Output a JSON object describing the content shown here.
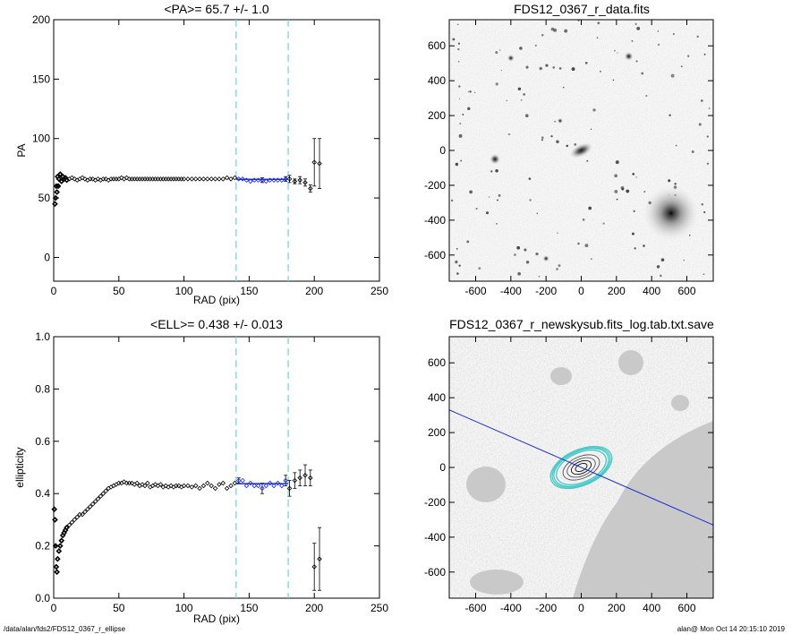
{
  "footer": {
    "path": "/data/alan/fds2/FDS12_0367_r_ellipse",
    "stamp": "alan@  Mon Oct 14 20:15:10 2019"
  },
  "colors": {
    "data": "#000000",
    "fit": "#1c2bd6",
    "bounds": "#67d7d7",
    "ellipse_outer": "#ffffff",
    "ellipse_inner": "#4fc9c6"
  },
  "chart_data": [
    {
      "type": "scatter",
      "title": "<PA>=  65.7 +/-   1.0",
      "xlabel": "RAD (pix)",
      "ylabel": "PA",
      "xlim": [
        0,
        250
      ],
      "ylim": [
        -20,
        200
      ],
      "xticks": [
        "0",
        "50",
        "100",
        "150",
        "200",
        "250"
      ],
      "xtick_values": [
        0,
        50,
        100,
        150,
        200,
        250
      ],
      "yticks": [
        "0",
        "50",
        "100",
        "150",
        "200"
      ],
      "ytick_values": [
        0,
        50,
        100,
        150,
        200
      ],
      "bounds": [
        140,
        180
      ],
      "fit_value": 65.7,
      "points": [
        [
          1,
          45
        ],
        [
          1.5,
          50
        ],
        [
          2,
          60
        ],
        [
          2.5,
          55
        ],
        [
          3,
          68
        ],
        [
          3.5,
          60
        ],
        [
          4,
          66
        ],
        [
          5,
          70
        ],
        [
          6,
          64
        ],
        [
          7,
          68
        ],
        [
          8,
          66
        ],
        [
          9,
          67
        ],
        [
          10,
          65
        ],
        [
          12,
          66
        ],
        [
          14,
          67
        ],
        [
          16,
          66
        ],
        [
          18,
          65
        ],
        [
          20,
          66
        ],
        [
          22,
          67
        ],
        [
          24,
          66
        ],
        [
          26,
          65
        ],
        [
          28,
          66
        ],
        [
          30,
          66
        ],
        [
          32,
          65
        ],
        [
          34,
          66
        ],
        [
          36,
          65
        ],
        [
          38,
          66
        ],
        [
          40,
          66
        ],
        [
          42,
          65
        ],
        [
          44,
          66
        ],
        [
          46,
          66
        ],
        [
          48,
          66
        ],
        [
          50,
          66
        ],
        [
          52,
          67
        ],
        [
          54,
          66
        ],
        [
          56,
          67
        ],
        [
          58,
          66
        ],
        [
          60,
          66
        ],
        [
          62,
          66
        ],
        [
          64,
          66
        ],
        [
          66,
          66
        ],
        [
          68,
          66
        ],
        [
          70,
          66
        ],
        [
          72,
          66
        ],
        [
          74,
          66
        ],
        [
          76,
          66
        ],
        [
          78,
          66
        ],
        [
          80,
          66
        ],
        [
          82,
          66
        ],
        [
          84,
          66
        ],
        [
          86,
          66
        ],
        [
          88,
          66
        ],
        [
          90,
          66
        ],
        [
          92,
          66
        ],
        [
          94,
          66
        ],
        [
          96,
          66
        ],
        [
          98,
          66
        ],
        [
          100,
          66
        ],
        [
          103,
          66
        ],
        [
          106,
          66
        ],
        [
          109,
          66
        ],
        [
          112,
          66
        ],
        [
          115,
          66
        ],
        [
          118,
          66
        ],
        [
          121,
          66
        ],
        [
          124,
          66
        ],
        [
          127,
          66
        ],
        [
          130,
          66
        ],
        [
          133,
          67
        ],
        [
          136,
          66
        ],
        [
          139,
          67
        ],
        [
          142,
          66
        ],
        [
          145,
          66
        ],
        [
          148,
          65
        ],
        [
          151,
          64
        ],
        [
          154,
          65
        ],
        [
          157,
          65
        ],
        [
          160,
          65
        ],
        [
          163,
          64
        ],
        [
          166,
          65
        ],
        [
          169,
          65
        ],
        [
          172,
          65
        ],
        [
          175,
          65
        ],
        [
          178,
          66
        ],
        [
          181,
          66
        ],
        [
          185,
          64
        ],
        [
          189,
          65
        ],
        [
          193,
          63
        ],
        [
          197,
          58
        ],
        [
          200,
          80
        ],
        [
          204,
          79
        ]
      ],
      "errors": [
        [
          140,
          2
        ],
        [
          150,
          2
        ],
        [
          160,
          2
        ],
        [
          170,
          2
        ],
        [
          178,
          2
        ],
        [
          181,
          3
        ],
        [
          185,
          2
        ],
        [
          189,
          3
        ],
        [
          193,
          3
        ],
        [
          197,
          3
        ],
        [
          200,
          20
        ],
        [
          204,
          21
        ]
      ]
    },
    {
      "type": "scatter",
      "title": "<ELL>= 0.438 +/-  0.013",
      "xlabel": "RAD (pix)",
      "ylabel": "ellipticity",
      "xlim": [
        0,
        250
      ],
      "ylim": [
        0,
        1
      ],
      "xticks": [
        "0",
        "50",
        "100",
        "150",
        "200",
        "250"
      ],
      "xtick_values": [
        0,
        50,
        100,
        150,
        200,
        250
      ],
      "yticks": [
        "0.0",
        "0.2",
        "0.4",
        "0.6",
        "0.8",
        "1.0"
      ],
      "ytick_values": [
        0,
        0.2,
        0.4,
        0.6,
        0.8,
        1.0
      ],
      "bounds": [
        140,
        180
      ],
      "fit_value": 0.438,
      "points": [
        [
          0.5,
          0.34
        ],
        [
          1,
          0.3
        ],
        [
          1.5,
          0.2
        ],
        [
          2,
          0.12
        ],
        [
          2.5,
          0.1
        ],
        [
          3,
          0.15
        ],
        [
          4,
          0.18
        ],
        [
          5,
          0.2
        ],
        [
          6,
          0.22
        ],
        [
          7,
          0.24
        ],
        [
          8,
          0.25
        ],
        [
          9,
          0.26
        ],
        [
          10,
          0.27
        ],
        [
          12,
          0.28
        ],
        [
          14,
          0.29
        ],
        [
          16,
          0.3
        ],
        [
          18,
          0.31
        ],
        [
          20,
          0.32
        ],
        [
          22,
          0.32
        ],
        [
          24,
          0.33
        ],
        [
          26,
          0.34
        ],
        [
          28,
          0.35
        ],
        [
          30,
          0.36
        ],
        [
          32,
          0.37
        ],
        [
          34,
          0.38
        ],
        [
          36,
          0.39
        ],
        [
          38,
          0.4
        ],
        [
          40,
          0.41
        ],
        [
          42,
          0.42
        ],
        [
          44,
          0.425
        ],
        [
          46,
          0.43
        ],
        [
          48,
          0.435
        ],
        [
          50,
          0.44
        ],
        [
          52,
          0.44
        ],
        [
          54,
          0.445
        ],
        [
          56,
          0.44
        ],
        [
          58,
          0.44
        ],
        [
          60,
          0.44
        ],
        [
          62,
          0.435
        ],
        [
          64,
          0.44
        ],
        [
          66,
          0.43
        ],
        [
          68,
          0.435
        ],
        [
          70,
          0.43
        ],
        [
          72,
          0.44
        ],
        [
          74,
          0.425
        ],
        [
          76,
          0.43
        ],
        [
          78,
          0.435
        ],
        [
          80,
          0.43
        ],
        [
          82,
          0.435
        ],
        [
          84,
          0.425
        ],
        [
          86,
          0.43
        ],
        [
          88,
          0.425
        ],
        [
          90,
          0.43
        ],
        [
          92,
          0.425
        ],
        [
          94,
          0.43
        ],
        [
          96,
          0.43
        ],
        [
          98,
          0.425
        ],
        [
          100,
          0.43
        ],
        [
          103,
          0.43
        ],
        [
          106,
          0.425
        ],
        [
          109,
          0.43
        ],
        [
          112,
          0.42
        ],
        [
          115,
          0.43
        ],
        [
          118,
          0.44
        ],
        [
          121,
          0.43
        ],
        [
          124,
          0.42
        ],
        [
          127,
          0.435
        ],
        [
          130,
          0.44
        ],
        [
          133,
          0.42
        ],
        [
          136,
          0.43
        ],
        [
          139,
          0.44
        ],
        [
          142,
          0.45
        ],
        [
          145,
          0.45
        ],
        [
          148,
          0.43
        ],
        [
          151,
          0.44
        ],
        [
          154,
          0.43
        ],
        [
          157,
          0.43
        ],
        [
          160,
          0.42
        ],
        [
          163,
          0.43
        ],
        [
          166,
          0.44
        ],
        [
          169,
          0.43
        ],
        [
          172,
          0.44
        ],
        [
          175,
          0.43
        ],
        [
          178,
          0.45
        ],
        [
          181,
          0.42
        ],
        [
          185,
          0.45
        ],
        [
          189,
          0.46
        ],
        [
          193,
          0.47
        ],
        [
          197,
          0.46
        ],
        [
          200,
          0.12
        ],
        [
          204,
          0.15
        ]
      ],
      "errors": [
        [
          142,
          0.01
        ],
        [
          150,
          0.015
        ],
        [
          160,
          0.02
        ],
        [
          170,
          0.02
        ],
        [
          178,
          0.02
        ],
        [
          181,
          0.03
        ],
        [
          185,
          0.03
        ],
        [
          189,
          0.03
        ],
        [
          193,
          0.04
        ],
        [
          197,
          0.03
        ],
        [
          200,
          0.09
        ],
        [
          204,
          0.12
        ]
      ]
    },
    {
      "type": "image",
      "title": "FDS12_0367_r_data.fits",
      "xlim": [
        -750,
        750
      ],
      "ylim": [
        -750,
        750
      ],
      "xticks": [
        "-600",
        "-400",
        "-200",
        "0",
        "200",
        "400",
        "600"
      ],
      "xtick_values": [
        -600,
        -400,
        -200,
        0,
        200,
        400,
        600
      ],
      "yticks": [
        "-600",
        "-400",
        "-200",
        "0",
        "200",
        "400",
        "600"
      ],
      "ytick_values": [
        -600,
        -400,
        -200,
        0,
        200,
        400,
        600
      ],
      "sources": [
        [
          0,
          0,
          70,
          36,
          25
        ],
        [
          510,
          -360,
          160,
          160,
          0
        ],
        [
          -490,
          -50,
          30,
          30,
          0
        ],
        [
          270,
          540,
          25,
          25,
          0
        ],
        [
          -400,
          530,
          20,
          20,
          0
        ],
        [
          -200,
          -620,
          18,
          18,
          0
        ],
        [
          -120,
          170,
          16,
          16,
          0
        ],
        [
          -230,
          470,
          14,
          14,
          0
        ],
        [
          -510,
          -120,
          10,
          10,
          0
        ],
        [
          -710,
          -640,
          14,
          14,
          0
        ]
      ]
    },
    {
      "type": "image",
      "title": "FDS12_0367_r_newskysub.fits_log.tab.txt.save",
      "xlim": [
        -750,
        750
      ],
      "ylim": [
        -750,
        750
      ],
      "xticks": [
        "-600",
        "-400",
        "-200",
        "0",
        "200",
        "400",
        "600"
      ],
      "xtick_values": [
        -600,
        -400,
        -200,
        0,
        200,
        400,
        600
      ],
      "yticks": [
        "-600",
        "-400",
        "-200",
        "0",
        "200",
        "400",
        "600"
      ],
      "ytick_values": [
        -600,
        -400,
        -200,
        0,
        200,
        400,
        600
      ],
      "pa_line": [
        [
          -750,
          330
        ],
        [
          750,
          -330
        ]
      ],
      "ellipse_pa": 24,
      "ellipses_outer": [
        [
          180,
          100
        ],
        [
          160,
          90
        ],
        [
          140,
          78
        ]
      ],
      "ellipses_inner": [
        [
          185,
          102
        ],
        [
          175,
          97
        ],
        [
          165,
          92
        ],
        [
          150,
          84
        ]
      ],
      "ellipses_core": [
        [
          110,
          62
        ],
        [
          85,
          48
        ],
        [
          60,
          34
        ],
        [
          35,
          20
        ]
      ]
    }
  ]
}
